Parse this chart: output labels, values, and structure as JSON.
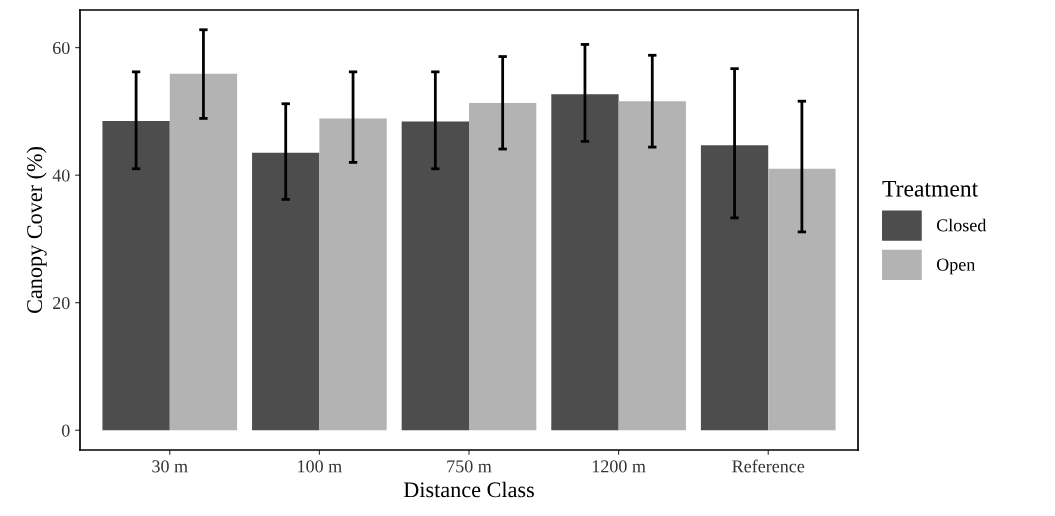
{
  "chart_data": {
    "type": "bar",
    "xlabel": "Distance Class",
    "ylabel": "Canopy Cover (%)",
    "legend_title": "Treatment",
    "categories": [
      "30 m",
      "100 m",
      "750 m",
      "1200 m",
      "Reference"
    ],
    "series": [
      {
        "name": "Closed",
        "color": "#4d4d4d",
        "values": [
          48.5,
          43.5,
          48.4,
          52.7,
          44.7
        ],
        "errors": [
          [
            41.0,
            56.2
          ],
          [
            36.2,
            51.2
          ],
          [
            41.0,
            56.2
          ],
          [
            45.3,
            60.5
          ],
          [
            33.3,
            56.7
          ]
        ]
      },
      {
        "name": "Open",
        "color": "#b3b3b3",
        "values": [
          55.9,
          48.9,
          51.3,
          51.6,
          41.0
        ],
        "errors": [
          [
            48.9,
            62.8
          ],
          [
            42.0,
            56.2
          ],
          [
            44.1,
            58.6
          ],
          [
            44.4,
            58.8
          ],
          [
            31.1,
            51.6
          ]
        ]
      }
    ],
    "ylim": [
      -3.1,
      65.9
    ],
    "yticks": [
      0,
      20,
      40,
      60
    ],
    "grid": false,
    "legend": "right"
  }
}
